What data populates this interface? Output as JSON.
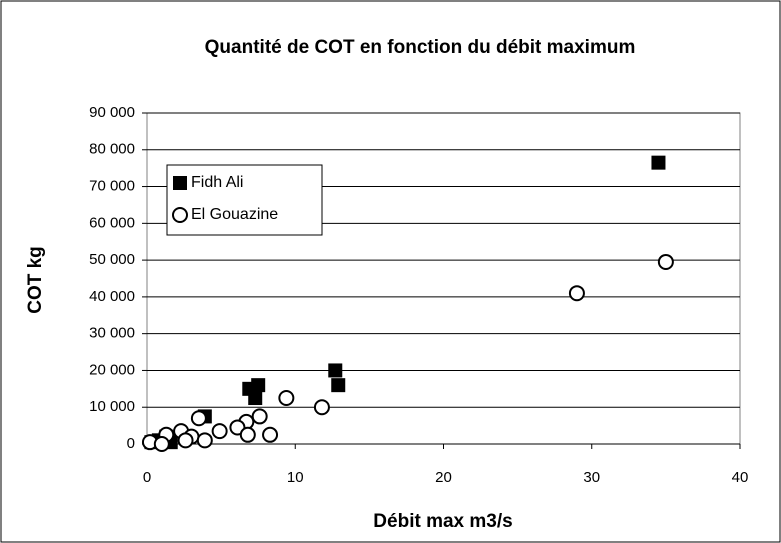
{
  "chart_data": {
    "type": "scatter",
    "title": "Quantité de COT en fonction du débit maximum",
    "x_label": "Débit max m3/s",
    "y_label": "COT kg",
    "xlim": [
      0,
      40
    ],
    "xticks": [
      0,
      10,
      20,
      30,
      40
    ],
    "ylim": [
      0,
      90000
    ],
    "yticks": [
      0,
      {
        "value": 10000,
        "label": "10 000"
      },
      {
        "value": 20000,
        "label": "20 000"
      },
      {
        "value": 30000,
        "label": "30 000"
      },
      {
        "value": 40000,
        "label": "40 000"
      },
      {
        "value": 50000,
        "label": "50 000"
      },
      {
        "value": 60000,
        "label": "60 000"
      },
      {
        "value": 70000,
        "label": "70 000"
      },
      {
        "value": 80000,
        "label": "80 000"
      },
      {
        "value": 90000,
        "label": "90 000"
      }
    ],
    "grid": true,
    "legend": "upper left",
    "series": [
      {
        "name": "Fidh Ali",
        "color": "#000000",
        "marker": "square",
        "x": [
          34.5,
          12.7,
          12.9,
          7.5,
          6.9,
          7.3,
          3.9,
          1.3,
          0.8,
          1.6,
          0.3
        ],
        "values": [
          76500,
          20000,
          16000,
          16000,
          15000,
          12500,
          7500,
          2000,
          1000,
          500,
          500
        ]
      },
      {
        "name": "El Gouazine",
        "color": "#000000",
        "marker": "circle",
        "x": [
          35,
          29,
          9.4,
          11.8,
          7.6,
          3.5,
          6.7,
          6.1,
          4.9,
          2.3,
          1.3,
          3.0,
          6.8,
          8.3,
          2.6,
          3.9,
          0.2,
          1.0
        ],
        "values": [
          49500,
          41000,
          12500,
          10000,
          7500,
          7000,
          6000,
          4500,
          3500,
          3500,
          2500,
          2000,
          2500,
          2500,
          1000,
          1000,
          500,
          0
        ]
      }
    ]
  }
}
